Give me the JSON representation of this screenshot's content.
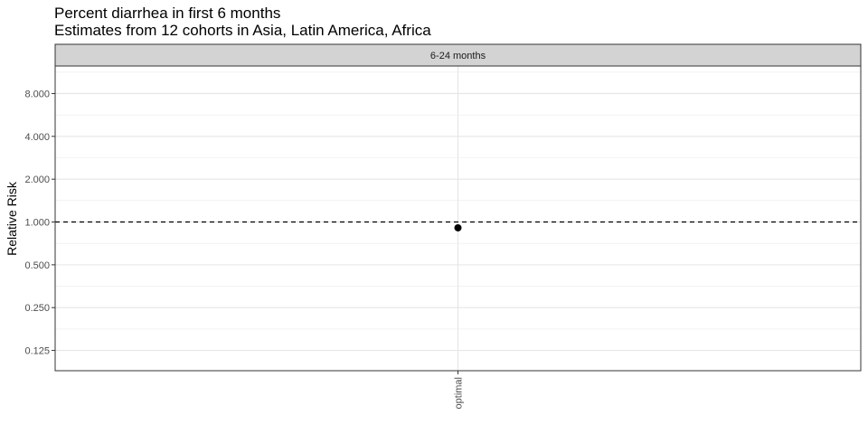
{
  "chart_data": {
    "type": "scatter",
    "title": "Percent diarrhea in first 6 months",
    "subtitle": "Estimates from 12 cohorts in Asia, Latin America, Africa",
    "facet": "6-24 months",
    "xlabel": "",
    "ylabel": "Relative Risk",
    "y_scale": "log2",
    "ylim": [
      0.09,
      12.5
    ],
    "y_ticks": [
      0.125,
      0.25,
      0.5,
      1,
      2,
      4,
      8
    ],
    "y_tick_labels": [
      "0.125",
      "0.250",
      "0.500",
      "1.000",
      "2.000",
      "4.000",
      "8.000"
    ],
    "categories": [
      "optimal"
    ],
    "series": [
      {
        "values": [
          0.91
        ]
      }
    ],
    "reference_line": 1,
    "grid": true,
    "legend": "none"
  }
}
